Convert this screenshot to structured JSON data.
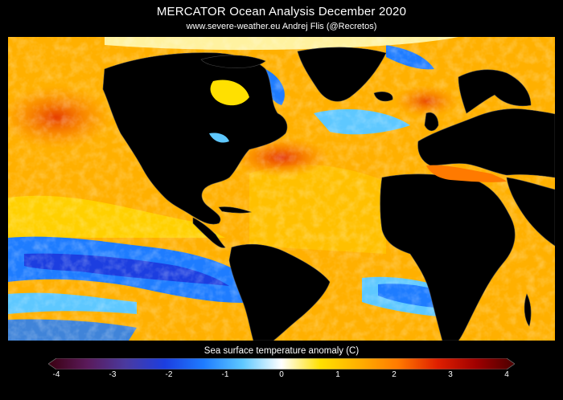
{
  "header": {
    "title": "MERCATOR Ocean Analysis  December 2020",
    "subtitle": "www.severe-weather.eu   Andrej Flis (@Recretos)"
  },
  "map": {
    "variable": "Sea surface temperature anomaly",
    "land_color": "#000000",
    "land_borders_color": "#444444"
  },
  "colorbar": {
    "label": "Sea surface temperature anomaly (C)",
    "min": -4,
    "max": 4,
    "ticks": [
      "-4",
      "-3",
      "-2",
      "-1",
      "0",
      "1",
      "2",
      "3",
      "4"
    ],
    "colors": [
      "#3a0010",
      "#5a1a5a",
      "#4a3aa0",
      "#1c3ee0",
      "#1e7cff",
      "#5ec8ff",
      "#ffffff",
      "#ffe000",
      "#ffb000",
      "#ff7a00",
      "#e02000",
      "#a00000",
      "#4a0000"
    ]
  }
}
